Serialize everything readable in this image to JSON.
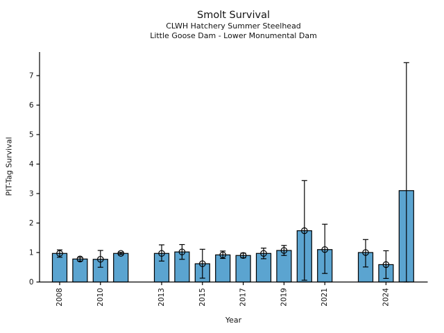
{
  "figure": {
    "title": "Smolt Survival",
    "subtitle1": "CLWH Hatchery Summer Steelhead",
    "subtitle2": "Little Goose Dam - Lower Monumental Dam",
    "xlabel": "Year",
    "ylabel": "PIT-Tag Survival"
  },
  "chart_data": {
    "type": "bar",
    "title": "Smolt Survival",
    "subtitles": [
      "CLWH Hatchery Summer Steelhead",
      "Little Goose Dam - Lower Monumental Dam"
    ],
    "xlabel": "Year",
    "ylabel": "PIT-Tag Survival",
    "ylim": [
      0,
      7.8
    ],
    "yticks": [
      "0",
      "1",
      "2",
      "3",
      "4",
      "5",
      "6",
      "7"
    ],
    "xticks": [
      "2008",
      "2010",
      "2013",
      "2015",
      "2017",
      "2019",
      "2021",
      "2024"
    ],
    "grid": false,
    "legend": "none",
    "bar_color": "#5BA4D0",
    "bar_edge_color": "#000000",
    "error_color": "#000000",
    "marker_style": "open-circle",
    "missing_years": [
      2012,
      2022
    ],
    "points": [
      {
        "year": 2008,
        "value": 0.97,
        "err_low": 0.84,
        "err_high": 1.09,
        "marker": true
      },
      {
        "year": 2009,
        "value": 0.78,
        "err_low": 0.71,
        "err_high": 0.84,
        "marker": true
      },
      {
        "year": 2010,
        "value": 0.77,
        "err_low": 0.5,
        "err_high": 1.07,
        "marker": true
      },
      {
        "year": 2011,
        "value": 0.97,
        "err_low": 0.93,
        "err_high": 1.01,
        "marker": true
      },
      {
        "year": 2013,
        "value": 0.97,
        "err_low": 0.71,
        "err_high": 1.26,
        "marker": true
      },
      {
        "year": 2014,
        "value": 1.02,
        "err_low": 0.77,
        "err_high": 1.27,
        "marker": true
      },
      {
        "year": 2015,
        "value": 0.62,
        "err_low": 0.13,
        "err_high": 1.11,
        "marker": true
      },
      {
        "year": 2016,
        "value": 0.92,
        "err_low": 0.8,
        "err_high": 1.05,
        "marker": true
      },
      {
        "year": 2017,
        "value": 0.9,
        "err_low": 0.82,
        "err_high": 0.98,
        "marker": true
      },
      {
        "year": 2018,
        "value": 0.97,
        "err_low": 0.79,
        "err_high": 1.15,
        "marker": true
      },
      {
        "year": 2019,
        "value": 1.07,
        "err_low": 0.9,
        "err_high": 1.24,
        "marker": true
      },
      {
        "year": 2020,
        "value": 1.74,
        "err_low": 0.06,
        "err_high": 3.44,
        "marker": true
      },
      {
        "year": 2021,
        "value": 1.1,
        "err_low": 0.29,
        "err_high": 1.96,
        "marker": true
      },
      {
        "year": 2023,
        "value": 1.0,
        "err_low": 0.51,
        "err_high": 1.44,
        "marker": true
      },
      {
        "year": 2024,
        "value": 0.59,
        "err_low": 0.12,
        "err_high": 1.06,
        "marker": true
      },
      {
        "year": 2025,
        "value": 3.1,
        "err_low": 0.0,
        "err_high": 7.44,
        "marker": false
      }
    ]
  }
}
